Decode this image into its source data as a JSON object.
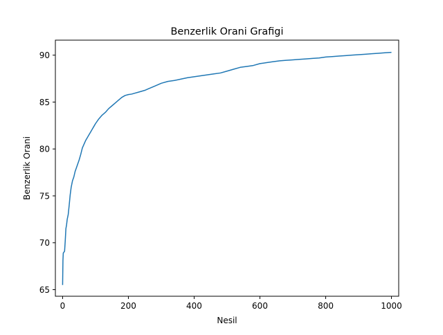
{
  "chart_data": {
    "type": "line",
    "title": "Benzerlik Orani Grafigi",
    "xlabel": "Nesil",
    "ylabel": "Benzerlik Orani",
    "xlim": [
      -22,
      1022
    ],
    "ylim": [
      64.3,
      91.6
    ],
    "x_ticks": [
      0,
      200,
      400,
      600,
      800,
      1000
    ],
    "y_ticks": [
      65,
      70,
      75,
      80,
      85,
      90
    ],
    "grid": false,
    "legend": "none",
    "series": [
      {
        "color": "#1f77b4",
        "x": [
          0,
          1,
          2,
          4,
          6,
          8,
          10,
          12,
          14,
          17,
          20,
          23,
          26,
          30,
          34,
          38,
          42,
          46,
          50,
          55,
          60,
          65,
          70,
          75,
          80,
          85,
          90,
          95,
          100,
          110,
          120,
          130,
          140,
          150,
          160,
          170,
          180,
          190,
          200,
          210,
          220,
          230,
          240,
          250,
          260,
          280,
          300,
          320,
          340,
          360,
          380,
          400,
          420,
          440,
          460,
          480,
          500,
          520,
          540,
          560,
          580,
          600,
          620,
          640,
          660,
          680,
          700,
          720,
          740,
          760,
          780,
          800,
          820,
          840,
          860,
          880,
          900,
          920,
          940,
          960,
          980,
          1000
        ],
        "values": [
          65.5,
          68.1,
          68.9,
          69.0,
          69.1,
          70.2,
          71.5,
          71.9,
          72.5,
          73.0,
          74.0,
          75.1,
          75.9,
          76.6,
          77.0,
          77.6,
          78.0,
          78.4,
          78.8,
          79.4,
          80.1,
          80.5,
          80.9,
          81.2,
          81.5,
          81.8,
          82.1,
          82.4,
          82.7,
          83.2,
          83.6,
          83.9,
          84.3,
          84.6,
          84.9,
          85.2,
          85.5,
          85.7,
          85.8,
          85.85,
          85.95,
          86.05,
          86.15,
          86.25,
          86.4,
          86.7,
          87.0,
          87.2,
          87.3,
          87.45,
          87.6,
          87.7,
          87.8,
          87.9,
          88.0,
          88.1,
          88.3,
          88.5,
          88.7,
          88.8,
          88.9,
          89.1,
          89.2,
          89.3,
          89.4,
          89.45,
          89.5,
          89.55,
          89.6,
          89.65,
          89.7,
          89.8,
          89.85,
          89.9,
          89.95,
          90.0,
          90.05,
          90.1,
          90.15,
          90.2,
          90.25,
          90.3
        ]
      }
    ]
  }
}
